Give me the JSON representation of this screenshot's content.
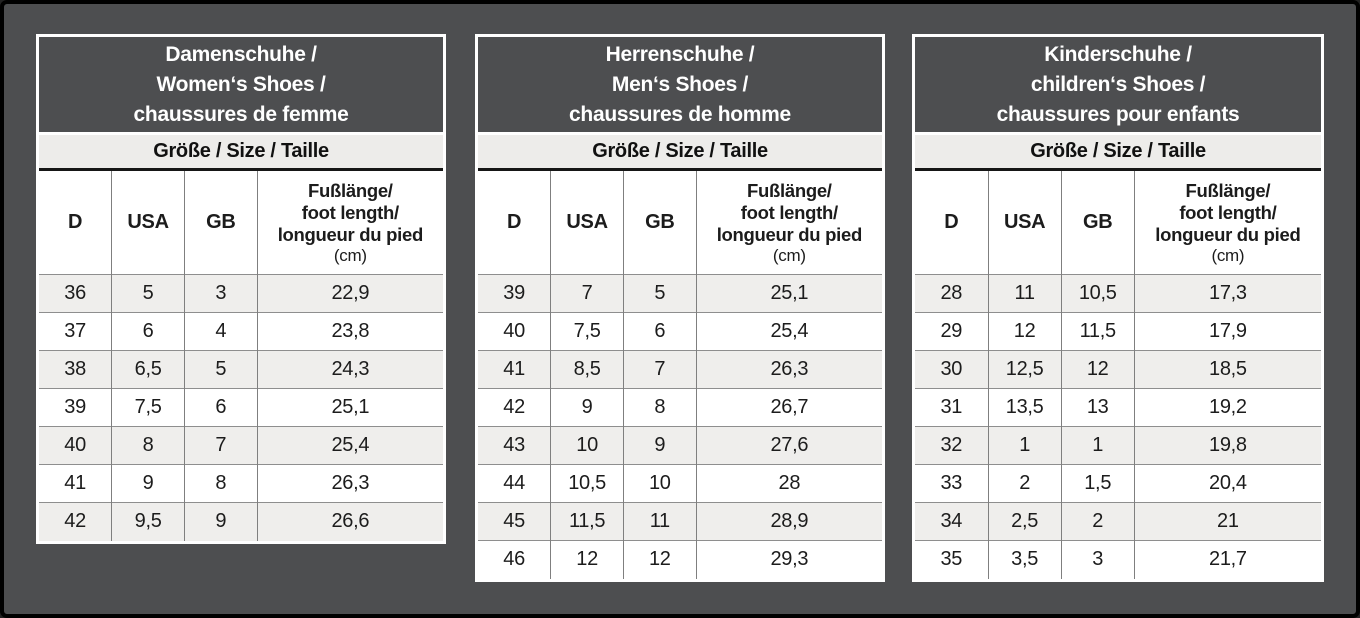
{
  "colors": {
    "frame": "#000000",
    "background": "#4d4e50",
    "title_bg": "#4d4e50",
    "title_text": "#ffffff",
    "band_bg": "#edecea",
    "row_shaded": "#efeeec",
    "row_plain": "#ffffff",
    "grid_line": "#8e8e8e",
    "text": "#1c1c1c"
  },
  "tables": [
    {
      "id": "women",
      "title_lines": [
        "Damenschuhe /",
        "Women‘s Shoes /",
        "chaussures de femme"
      ],
      "band": "Größe / Size / Taille",
      "col_d": "D",
      "col_usa": "USA",
      "col_gb": "GB",
      "foot_lines": [
        "Fußlänge/",
        "foot length/",
        "longueur du pied"
      ],
      "foot_unit": "(cm)",
      "rows": [
        [
          "36",
          "5",
          "3",
          "22,9"
        ],
        [
          "37",
          "6",
          "4",
          "23,8"
        ],
        [
          "38",
          "6,5",
          "5",
          "24,3"
        ],
        [
          "39",
          "7,5",
          "6",
          "25,1"
        ],
        [
          "40",
          "8",
          "7",
          "25,4"
        ],
        [
          "41",
          "9",
          "8",
          "26,3"
        ],
        [
          "42",
          "9,5",
          "9",
          "26,6"
        ]
      ]
    },
    {
      "id": "men",
      "title_lines": [
        "Herrenschuhe /",
        "Men‘s Shoes /",
        "chaussures de homme"
      ],
      "band": "Größe / Size / Taille",
      "col_d": "D",
      "col_usa": "USA",
      "col_gb": "GB",
      "foot_lines": [
        "Fußlänge/",
        "foot length/",
        "longueur du pied"
      ],
      "foot_unit": "(cm)",
      "rows": [
        [
          "39",
          "7",
          "5",
          "25,1"
        ],
        [
          "40",
          "7,5",
          "6",
          "25,4"
        ],
        [
          "41",
          "8,5",
          "7",
          "26,3"
        ],
        [
          "42",
          "9",
          "8",
          "26,7"
        ],
        [
          "43",
          "10",
          "9",
          "27,6"
        ],
        [
          "44",
          "10,5",
          "10",
          "28"
        ],
        [
          "45",
          "11,5",
          "11",
          "28,9"
        ],
        [
          "46",
          "12",
          "12",
          "29,3"
        ]
      ]
    },
    {
      "id": "children",
      "title_lines": [
        "Kinderschuhe /",
        "children‘s Shoes /",
        "chaussures pour enfants"
      ],
      "band": "Größe / Size / Taille",
      "col_d": "D",
      "col_usa": "USA",
      "col_gb": "GB",
      "foot_lines": [
        "Fußlänge/",
        "foot length/",
        "longueur du pied"
      ],
      "foot_unit": "(cm)",
      "rows": [
        [
          "28",
          "11",
          "10,5",
          "17,3"
        ],
        [
          "29",
          "12",
          "11,5",
          "17,9"
        ],
        [
          "30",
          "12,5",
          "12",
          "18,5"
        ],
        [
          "31",
          "13,5",
          "13",
          "19,2"
        ],
        [
          "32",
          "1",
          "1",
          "19,8"
        ],
        [
          "33",
          "2",
          "1,5",
          "20,4"
        ],
        [
          "34",
          "2,5",
          "2",
          "21"
        ],
        [
          "35",
          "3,5",
          "3",
          "21,7"
        ]
      ]
    }
  ]
}
